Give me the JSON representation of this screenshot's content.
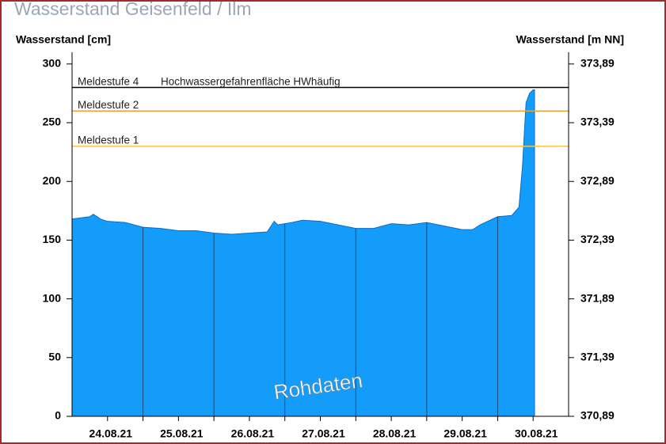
{
  "chart_data": {
    "type": "area",
    "title": "Wasserstand Geisenfeld / Ilm",
    "y_label": "Wasserstand [cm]",
    "y2_label": "Wasserstand [m NN]",
    "annotation": "Rohdaten",
    "xlim": [
      0,
      7
    ],
    "xticks": [
      {
        "value": 0.5,
        "label": "24.08.21"
      },
      {
        "value": 1.5,
        "label": "25.08.21"
      },
      {
        "value": 2.5,
        "label": "26.08.21"
      },
      {
        "value": 3.5,
        "label": "27.08.21"
      },
      {
        "value": 4.5,
        "label": "28.08.21"
      },
      {
        "value": 5.5,
        "label": "29.08.21"
      },
      {
        "value": 6.5,
        "label": "30.08.21"
      }
    ],
    "day_lines": [
      1,
      2,
      3,
      4,
      5,
      6
    ],
    "ylim": [
      0,
      310
    ],
    "yticks": [
      0,
      50,
      100,
      150,
      200,
      250,
      300
    ],
    "y2lim": [
      370.89,
      373.99
    ],
    "y2ticks": [
      {
        "value": 370.89,
        "label": "370,89"
      },
      {
        "value": 371.39,
        "label": "371,39"
      },
      {
        "value": 371.89,
        "label": "371,89"
      },
      {
        "value": 372.39,
        "label": "372,39"
      },
      {
        "value": 372.89,
        "label": "372,89"
      },
      {
        "value": 373.39,
        "label": "373,39"
      },
      {
        "value": 373.89,
        "label": "373,89"
      }
    ],
    "thresholds": [
      {
        "label": "Meldestufe 4",
        "note": "Hochwassergefahrenfläche HWhäufig",
        "value": 280,
        "color": "#000000"
      },
      {
        "label": "Meldestufe 2",
        "value": 260,
        "color": "#f0a030"
      },
      {
        "label": "Meldestufe 1",
        "value": 230,
        "color": "#f7c64a"
      }
    ],
    "series": [
      {
        "color": "#149cfa",
        "x": [
          0,
          0.25,
          0.3,
          0.4,
          0.5,
          0.75,
          1.0,
          1.25,
          1.5,
          1.75,
          2.0,
          2.25,
          2.5,
          2.75,
          2.85,
          2.9,
          3.0,
          3.1,
          3.25,
          3.5,
          3.75,
          4.0,
          4.25,
          4.5,
          4.75,
          5.0,
          5.25,
          5.5,
          5.65,
          5.75,
          6.0,
          6.2,
          6.3,
          6.35,
          6.4,
          6.45,
          6.5,
          6.52
        ],
        "values": [
          168,
          170,
          172,
          168,
          166,
          165,
          161,
          160,
          158,
          158,
          156,
          155,
          156,
          157,
          166,
          163,
          164,
          165,
          167,
          166,
          163,
          160,
          160,
          164,
          163,
          165,
          162,
          159,
          159,
          163,
          170,
          171,
          178,
          213,
          267,
          275,
          278,
          278
        ]
      }
    ]
  }
}
